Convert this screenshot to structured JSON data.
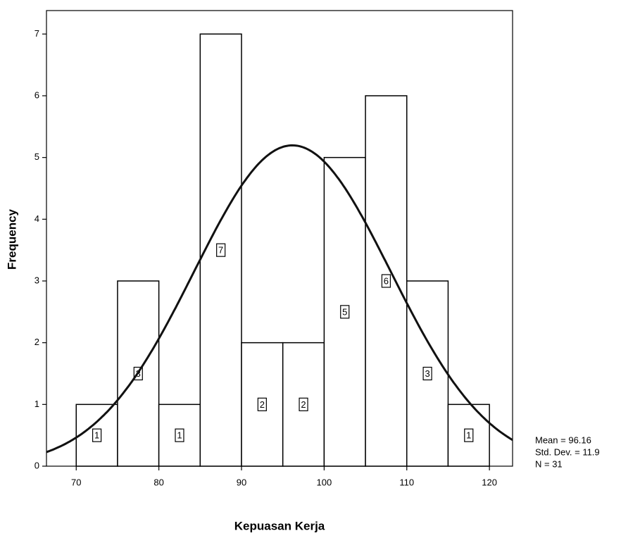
{
  "chart_data": {
    "type": "histogram",
    "x_label": "Kepuasan Kerja",
    "y_label": "Frequency",
    "bins": [
      70,
      75,
      80,
      85,
      90,
      95,
      100,
      105,
      110,
      115,
      120
    ],
    "values": [
      1,
      3,
      1,
      7,
      2,
      2,
      5,
      6,
      3,
      1
    ],
    "color": "#ffffff",
    "xlim": [
      66.4,
      122.8
    ],
    "ylim": [
      0,
      7.38
    ],
    "xticks": [
      70,
      80,
      90,
      100,
      110,
      120
    ],
    "yticks": [
      0,
      1,
      2,
      3,
      4,
      5,
      6,
      7
    ],
    "normal_curve": {
      "mean": 96.16,
      "std_dev": 11.9,
      "n": 31,
      "labels": [
        "Mean = 96.16",
        "Std. Dev. = 11.9",
        "N = 31"
      ]
    }
  }
}
